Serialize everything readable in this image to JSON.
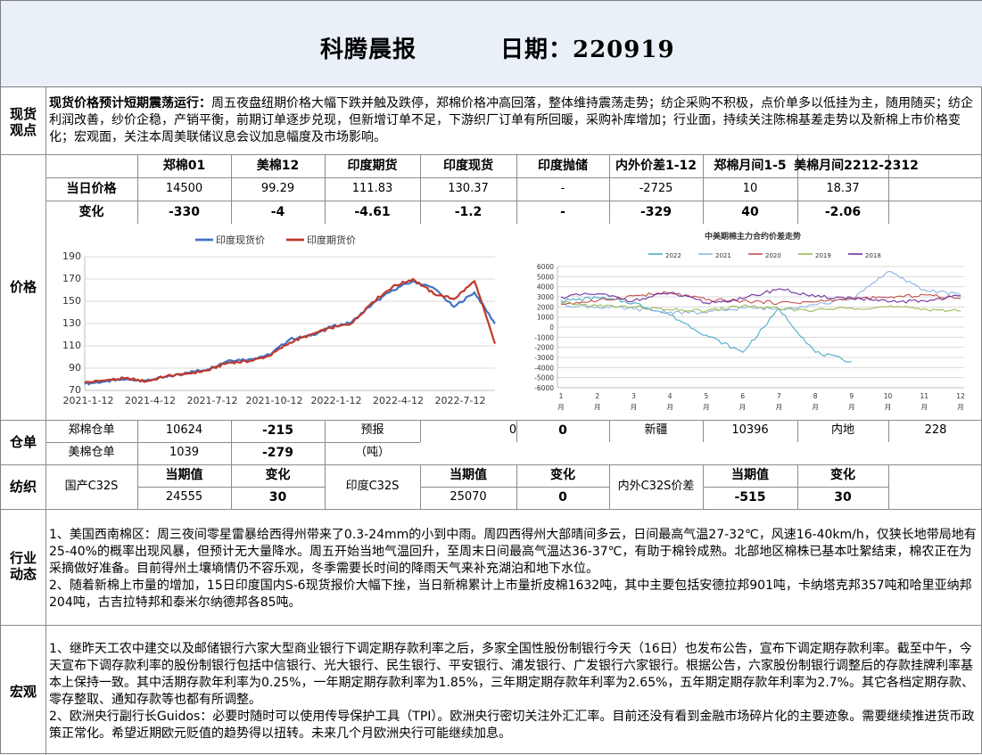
{
  "header": {
    "title": "科腾晨报",
    "date_label": "日期：220919"
  },
  "sections": {
    "spot_view": "现货\n观点",
    "price": "价格",
    "warehouse": "仓单",
    "textile": "纺织",
    "industry": "行业\n动态",
    "macro": "宏观"
  },
  "spot_view": {
    "bold": "现货价格预计短期震荡运行：",
    "text": "周五夜盘纽期价格大幅下跌并触及跌停，郑棉价格冲高回落，整体维持震荡走势；纺企采购不积极，点价单多以低挂为主，随用随买；纺企利润改善，纱价企稳，产销平衡，前期订单逐步兑现，但新增订单不足，下游织厂订单有所回暖，采购补库增加；行业面，持续关注陈棉基差走势以及新棉上市价格变化；宏观面，关注本周美联储议息会议加息幅度及市场影响。"
  },
  "price_table": {
    "headers": [
      "郑棉01",
      "美棉12",
      "印度期货",
      "印度现货",
      "印度抛储",
      "内外价差1-12",
      "郑棉月间1-5",
      "美棉月间2212-2312"
    ],
    "row_labels": [
      "当日价格",
      "变化"
    ],
    "today": [
      "14500",
      "99.29",
      "111.83",
      "130.37",
      "-",
      "-2725",
      "10",
      "18.37"
    ],
    "change": [
      "-330",
      "-4",
      "-4.61",
      "-1.2",
      "-",
      "-329",
      "40",
      "-2.06"
    ]
  },
  "warehouse": {
    "zc_label": "郑棉仓单",
    "zc_value": "10624",
    "zc_change": "-215",
    "forecast_label": "预报",
    "forecast_value": "0",
    "forecast_change": "0",
    "xinjiang_label": "新疆",
    "xinjiang_value": "10396",
    "inland_label": "内地",
    "inland_value": "228",
    "us_label": "美棉仓单",
    "us_value": "1039",
    "us_change": "-279",
    "unit": "（吨）"
  },
  "textile": {
    "cur_label": "当期值",
    "chg_label": "变化",
    "domestic_label": "国产C32S",
    "domestic_value": "24555",
    "domestic_change": "30",
    "india_label": "印度C32S",
    "india_value": "25070",
    "india_change": "0",
    "spread_label": "内外C32S价差",
    "spread_value": "-515",
    "spread_change": "30"
  },
  "industry": {
    "p1": "1、美国西南棉区：周三夜间零星雷暴给西得州带来了0.3-24mm的小到中雨。周四西得州大部晴间多云，日间最高气温27-32℃，风速16-40km/h，仅狭长地带局地有25-40%的概率出现风暴，但预计无大量降水。周五开始当地气温回升，至周末日间最高气温达36-37℃，有助于棉铃成熟。北部地区棉株已基本吐絮结束，棉农正在为采摘做好准备。目前得州土壤墒情仍不容乐观，冬季需要长时间的降雨天气来补充湖泊和地下水位。",
    "p2": "2、随着新棉上市量的增加，15日印度国内S-6现货报价大幅下挫，当日新棉累计上市量折皮棉1632吨，其中主要包括安德拉邦901吨，卡纳塔克邦357吨和哈里亚纳邦204吨，古吉拉特邦和泰米尔纳德邦各85吨。"
  },
  "macro": {
    "p1": "1、继昨天工农中建交以及邮储银行六家大型商业银行下调定期存款利率之后，多家全国性股份制银行今天（16日）也发布公告，宣布下调定期存款利率。截至中午，今天宣布下调存款利率的股份制银行包括中信银行、光大银行、民生银行、平安银行、浦发银行、广发银行六家银行。根据公告，六家股份制银行调整后的存款挂牌利率基本上保持一致。其中活期存款年利率为0.25%，一年期定期存款利率为1.85%，三年期定期存款年利率为2.65%，五年期定期存款年利率为2.7%。其它各档定期存款、零存整取、通知存款等也都有所调整。",
    "p2": "2、欧洲央行副行长Guidos：必要时随时可以使用传导保护工具（TPI）。欧洲央行密切关注外汇汇率。目前还没有看到金融市场碎片化的主要迹象。需要继续推进货币政策正常化。希望近期欧元贬值的趋势得以扭转。未来几个月欧洲央行可能继续加息。"
  },
  "chart_data": [
    {
      "type": "line",
      "title": "",
      "legend": [
        "印度现货价",
        "印度期货价"
      ],
      "legend_position": "top",
      "colors": {
        "印度现货价": "#4472c4",
        "印度期货价": "#c0392b"
      },
      "ylim": [
        70,
        190
      ],
      "yticks": [
        "70",
        "90",
        "110",
        "130",
        "150",
        "170",
        "190"
      ],
      "xticks": [
        "2021-1-12",
        "2021-4-12",
        "2021-7-12",
        "2021-10-12",
        "2022-1-12",
        "2022-4-12",
        "2022-7-12"
      ],
      "x": [
        "2021-01",
        "2021-02",
        "2021-03",
        "2021-04",
        "2021-05",
        "2021-06",
        "2021-07",
        "2021-08",
        "2021-09",
        "2021-10",
        "2021-11",
        "2021-12",
        "2022-01",
        "2022-02",
        "2022-03",
        "2022-04",
        "2022-05",
        "2022-06",
        "2022-07",
        "2022-08",
        "2022-09"
      ],
      "series": [
        {
          "name": "印度现货价",
          "values": [
            76,
            78,
            80,
            79,
            82,
            86,
            89,
            97,
            98,
            102,
            116,
            119,
            127,
            131,
            147,
            160,
            168,
            162,
            145,
            158,
            130
          ]
        },
        {
          "name": "印度期货价",
          "values": [
            77,
            79,
            81,
            78,
            83,
            85,
            88,
            95,
            96,
            101,
            113,
            120,
            126,
            130,
            149,
            163,
            170,
            157,
            152,
            168,
            112
          ]
        }
      ],
      "grid": true
    },
    {
      "type": "line",
      "title": "中美期棉主力合约价差走势",
      "legend": [
        "2022",
        "2021",
        "2020",
        "2019",
        "2018"
      ],
      "legend_position": "top",
      "colors": {
        "2022": "#4bacc6",
        "2021": "#8eb4e3",
        "2020": "#c0504d",
        "2019": "#9bbb59",
        "2018": "#7030a0"
      },
      "ylim": [
        -6000,
        6000
      ],
      "yticks": [
        "-6000",
        "-5000",
        "-4000",
        "-3000",
        "-2000",
        "-1000",
        "0",
        "1000",
        "2000",
        "3000",
        "4000",
        "5000",
        "6000"
      ],
      "xticks": [
        "1月",
        "2月",
        "3月",
        "4月",
        "5月",
        "6月",
        "7月",
        "8月",
        "9月",
        "10月",
        "11月",
        "12月"
      ],
      "x": [
        1,
        2,
        3,
        4,
        5,
        6,
        7,
        8,
        9,
        10,
        11,
        12
      ],
      "series": [
        {
          "name": "2022",
          "values": [
            2600,
            2900,
            2400,
            1200,
            -800,
            -2500,
            1800,
            -2500,
            -3400,
            null,
            null,
            null
          ]
        },
        {
          "name": "2021",
          "values": [
            2200,
            2000,
            1800,
            1500,
            1400,
            1900,
            1800,
            2200,
            2800,
            5500,
            3700,
            3200
          ]
        },
        {
          "name": "2020",
          "values": [
            2300,
            2600,
            3100,
            3400,
            2700,
            2600,
            2400,
            2500,
            2800,
            2900,
            3200,
            2800
          ]
        },
        {
          "name": "2019",
          "values": [
            2400,
            2100,
            2000,
            1700,
            1600,
            2100,
            1800,
            1700,
            1900,
            2000,
            1800,
            1600
          ]
        },
        {
          "name": "2018",
          "values": [
            3000,
            3300,
            2600,
            3400,
            2400,
            2800,
            3800,
            3000,
            2900,
            2500,
            2600,
            3100
          ]
        }
      ],
      "grid": true
    }
  ]
}
